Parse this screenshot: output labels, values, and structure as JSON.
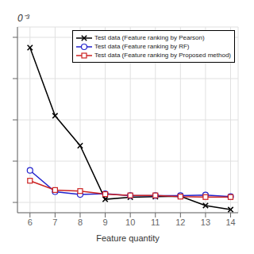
{
  "chart_data": {
    "type": "line",
    "xlabel": "Feature quantity",
    "annotation": "0⁻³",
    "x": [
      6,
      7,
      8,
      9,
      10,
      11,
      12,
      13,
      14
    ],
    "series": [
      {
        "name": "Test data (Feature ranking by Pearson)",
        "color": "#000000",
        "marker": "x",
        "values": [
          9.5,
          6.2,
          4.75,
          2.15,
          2.25,
          2.28,
          2.3,
          1.85,
          1.65
        ]
      },
      {
        "name": "Test data (Feature ranking by RF)",
        "color": "#2222cc",
        "marker": "circle",
        "values": [
          3.55,
          2.52,
          2.38,
          2.42,
          2.33,
          2.33,
          2.33,
          2.36,
          2.28
        ]
      },
      {
        "name": "Test data (Feature ranking by Proposed method)",
        "color": "#cc2222",
        "marker": "square",
        "values": [
          3.05,
          2.6,
          2.55,
          2.4,
          2.34,
          2.34,
          2.28,
          2.26,
          2.26
        ]
      }
    ],
    "xlim": [
      5.5,
      14.3
    ],
    "ylim": [
      1.5,
      10.5
    ],
    "xticks": [
      6,
      7,
      8,
      9,
      10,
      11,
      12,
      13,
      14
    ],
    "yticks": [
      2,
      4,
      6,
      8,
      10
    ],
    "grid": true,
    "legend": "upper right",
    "tick_labels": "x"
  }
}
